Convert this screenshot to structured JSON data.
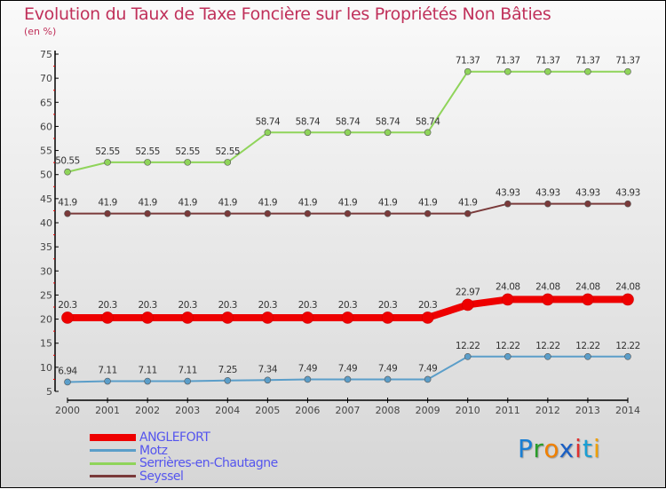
{
  "chart_data": {
    "type": "line",
    "title": "Evolution du Taux de Taxe Foncière sur les Propriétés Non Bâties",
    "ylabel": "(en %)",
    "xlabel": "",
    "ylim": [
      5,
      75
    ],
    "yticks": [
      "5",
      "10",
      "15",
      "20",
      "25",
      "30",
      "35",
      "40",
      "45",
      "50",
      "55",
      "60",
      "65",
      "70",
      "75"
    ],
    "x": [
      "2000",
      "2001",
      "2002",
      "2003",
      "2004",
      "2005",
      "2006",
      "2007",
      "2008",
      "2009",
      "2010",
      "2011",
      "2012",
      "2013",
      "2014"
    ],
    "series": [
      {
        "name": "ANGLEFORT",
        "color": "#ee0000",
        "width": 8,
        "values": [
          20.3,
          20.3,
          20.3,
          20.3,
          20.3,
          20.3,
          20.3,
          20.3,
          20.3,
          20.3,
          22.97,
          24.08,
          24.08,
          24.08,
          24.08
        ],
        "labels": [
          "20.3",
          "20.3",
          "20.3",
          "20.3",
          "20.3",
          "20.3",
          "20.3",
          "20.3",
          "20.3",
          "20.3",
          "22.97",
          "24.08",
          "24.08",
          "24.08",
          "24.08"
        ]
      },
      {
        "name": "Motz",
        "color": "#5b9ec9",
        "width": 2,
        "values": [
          6.94,
          7.11,
          7.11,
          7.11,
          7.25,
          7.34,
          7.49,
          7.49,
          7.49,
          7.49,
          12.22,
          12.22,
          12.22,
          12.22,
          12.22
        ],
        "labels": [
          "6.94",
          "7.11",
          "7.11",
          "7.11",
          "7.25",
          "7.34",
          "7.49",
          "7.49",
          "7.49",
          "7.49",
          "12.22",
          "12.22",
          "12.22",
          "12.22",
          "12.22"
        ]
      },
      {
        "name": "Serrières-en-Chautagne",
        "color": "#8fd45a",
        "width": 2,
        "values": [
          50.55,
          52.55,
          52.55,
          52.55,
          52.55,
          58.74,
          58.74,
          58.74,
          58.74,
          58.74,
          71.37,
          71.37,
          71.37,
          71.37,
          71.37
        ],
        "labels": [
          "50.55",
          "52.55",
          "52.55",
          "52.55",
          "52.55",
          "58.74",
          "58.74",
          "58.74",
          "58.74",
          "58.74",
          "71.37",
          "71.37",
          "71.37",
          "71.37",
          "71.37"
        ]
      },
      {
        "name": "Seyssel",
        "color": "#7a3a3a",
        "width": 2,
        "values": [
          41.9,
          41.9,
          41.9,
          41.9,
          41.9,
          41.9,
          41.9,
          41.9,
          41.9,
          41.9,
          41.9,
          43.93,
          43.93,
          43.93,
          43.93
        ],
        "labels": [
          "41.9",
          "41.9",
          "41.9",
          "41.9",
          "41.9",
          "41.9",
          "41.9",
          "41.9",
          "41.9",
          "41.9",
          "41.9",
          "43.93",
          "43.93",
          "43.93",
          "43.93"
        ]
      }
    ],
    "legend": "bottom-left",
    "grid": false
  },
  "logo": "Proxiti"
}
